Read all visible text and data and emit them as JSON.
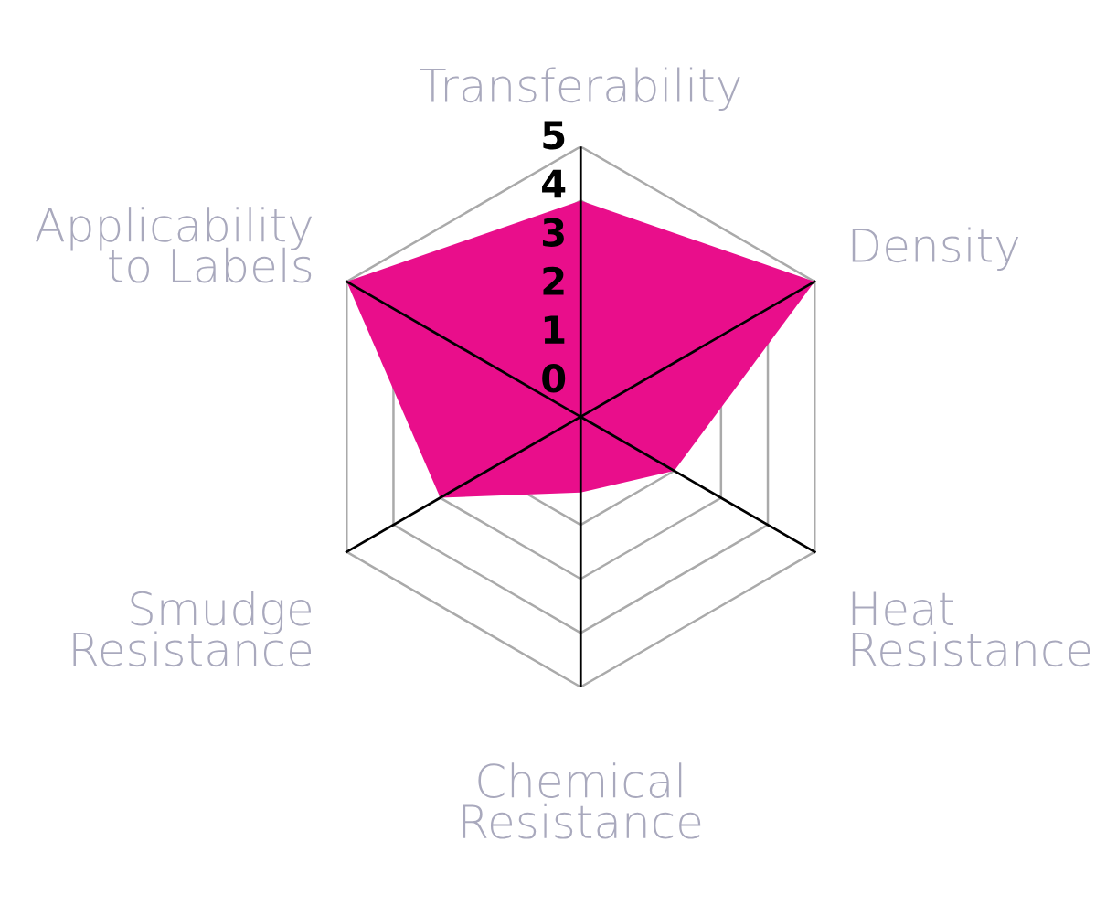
{
  "chart_data": {
    "type": "radar",
    "categories": [
      "Transferability",
      "Density",
      "Heat\nResistance",
      "Chemical\nResistance",
      "Smudge\nResistance",
      "Applicability\nto Labels"
    ],
    "series": [
      {
        "color": "#e90e8b",
        "values": [
          4,
          5,
          2,
          1.4,
          3,
          5
        ]
      }
    ],
    "ylim": [
      0,
      5
    ],
    "yticks": [
      0,
      1,
      2,
      3,
      4,
      5
    ],
    "grid": true,
    "legend": false
  }
}
